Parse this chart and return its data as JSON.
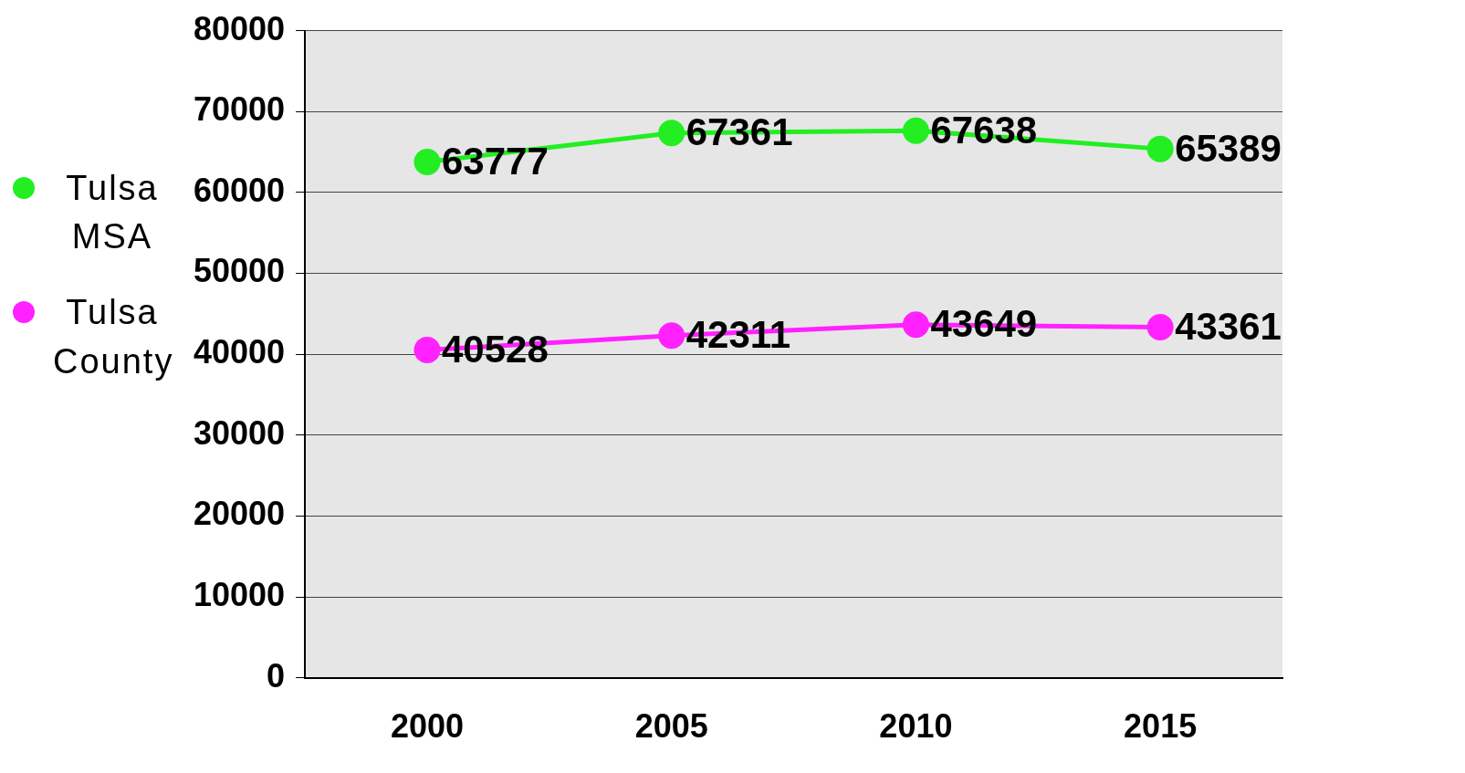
{
  "chart_data": {
    "type": "line",
    "categories": [
      "2000",
      "2005",
      "2010",
      "2015"
    ],
    "series": [
      {
        "name": "Tulsa MSA",
        "color": "#22ee22",
        "values": [
          63777,
          67361,
          67638,
          65389
        ]
      },
      {
        "name": "Tulsa County",
        "color": "#ff22ff",
        "values": [
          40528,
          42311,
          43649,
          43361
        ]
      }
    ],
    "ylim": [
      0,
      80000
    ],
    "yticks": [
      0,
      10000,
      20000,
      30000,
      40000,
      50000,
      60000,
      70000,
      80000
    ],
    "grid": "y",
    "legend": "left",
    "marker": "circle",
    "data_labels": true
  }
}
